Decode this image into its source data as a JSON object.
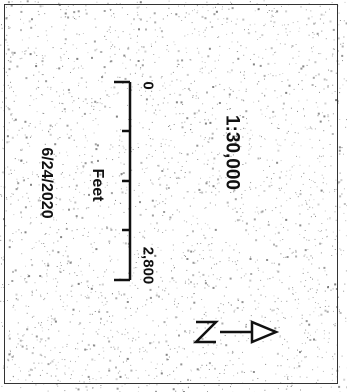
{
  "map": {
    "scale_ratio": "1:30,000",
    "date": "6/24/2020",
    "scale_bar": {
      "unit": "Feet",
      "start_label": "0",
      "end_label": "2,800"
    },
    "north_arrow": {
      "letter": "N",
      "icon": "north-arrow-icon"
    }
  },
  "colors": {
    "ink": "#111111",
    "paper": "#ffffff",
    "speckle": "#555555"
  }
}
